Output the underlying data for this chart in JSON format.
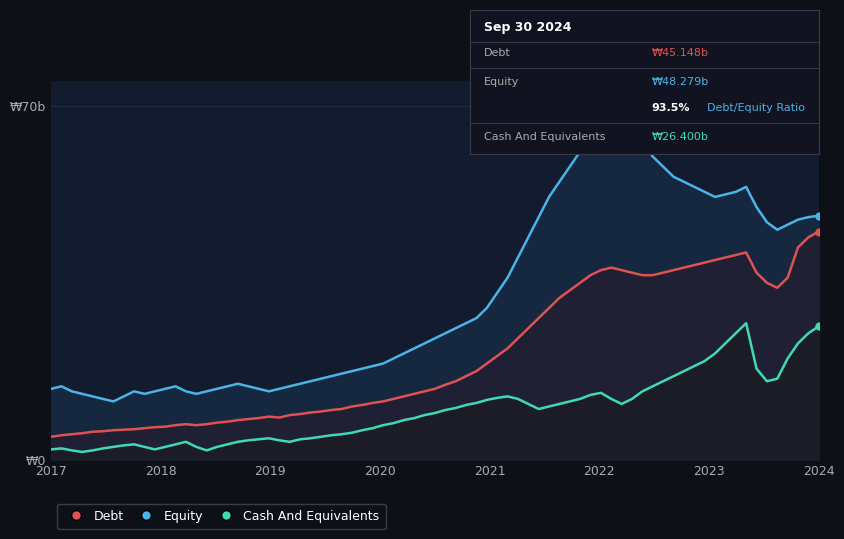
{
  "background_color": "#0d1117",
  "plot_bg_color": "#131b2e",
  "ylabel_70b": "₩70b",
  "ylabel_0": "₩0",
  "x_labels": [
    "2017",
    "2018",
    "2019",
    "2020",
    "2021",
    "2022",
    "2023",
    "2024"
  ],
  "legend": [
    {
      "label": "Debt",
      "color": "#e05252"
    },
    {
      "label": "Equity",
      "color": "#4ab3e8"
    },
    {
      "label": "Cash And Equivalents",
      "color": "#40d9b5"
    }
  ],
  "tooltip": {
    "date": "Sep 30 2024",
    "debt_label": "Debt",
    "debt_value": "₩45.148b",
    "debt_color": "#e05252",
    "equity_label": "Equity",
    "equity_value": "₩48.279b",
    "equity_color": "#4ab3e8",
    "ratio_bold": "93.5%",
    "ratio_text": " Debt/Equity Ratio",
    "ratio_color": "#4ab3e8",
    "cash_label": "Cash And Equivalents",
    "cash_value": "₩26.400b",
    "cash_color": "#40d9b5"
  },
  "debt_color": "#e05252",
  "equity_color": "#4ab3e8",
  "cash_color": "#40d9b5",
  "ylim_max": 75,
  "equity": [
    14.0,
    14.5,
    13.5,
    13.0,
    12.5,
    12.0,
    11.5,
    12.5,
    13.5,
    13.0,
    13.5,
    14.0,
    14.5,
    13.5,
    13.0,
    13.5,
    14.0,
    14.5,
    15.0,
    14.5,
    14.0,
    13.5,
    14.0,
    14.5,
    15.0,
    15.5,
    16.0,
    16.5,
    17.0,
    17.5,
    18.0,
    18.5,
    19.0,
    20.0,
    21.0,
    22.0,
    23.0,
    24.0,
    25.0,
    26.0,
    27.0,
    28.0,
    30.0,
    33.0,
    36.0,
    40.0,
    44.0,
    48.0,
    52.0,
    55.0,
    58.0,
    61.0,
    63.0,
    65.0,
    67.0,
    68.0,
    66.0,
    63.0,
    60.0,
    58.0,
    56.0,
    55.0,
    54.0,
    53.0,
    52.0,
    52.5,
    53.0,
    54.0,
    50.0,
    47.0,
    45.5,
    46.5,
    47.5,
    48.0,
    48.279
  ],
  "debt": [
    4.5,
    4.8,
    5.0,
    5.2,
    5.5,
    5.6,
    5.8,
    5.9,
    6.0,
    6.2,
    6.4,
    6.5,
    6.8,
    7.0,
    6.8,
    7.0,
    7.3,
    7.5,
    7.8,
    8.0,
    8.2,
    8.5,
    8.3,
    8.8,
    9.0,
    9.3,
    9.5,
    9.8,
    10.0,
    10.5,
    10.8,
    11.2,
    11.5,
    12.0,
    12.5,
    13.0,
    13.5,
    14.0,
    14.8,
    15.5,
    16.5,
    17.5,
    19.0,
    20.5,
    22.0,
    24.0,
    26.0,
    28.0,
    30.0,
    32.0,
    33.5,
    35.0,
    36.5,
    37.5,
    38.0,
    37.5,
    37.0,
    36.5,
    36.5,
    37.0,
    37.5,
    38.0,
    38.5,
    39.0,
    39.5,
    40.0,
    40.5,
    41.0,
    37.0,
    35.0,
    34.0,
    36.0,
    42.0,
    44.0,
    45.148
  ],
  "cash": [
    2.0,
    2.2,
    1.8,
    1.5,
    1.8,
    2.2,
    2.5,
    2.8,
    3.0,
    2.5,
    2.0,
    2.5,
    3.0,
    3.5,
    2.5,
    1.8,
    2.5,
    3.0,
    3.5,
    3.8,
    4.0,
    4.2,
    3.8,
    3.5,
    4.0,
    4.2,
    4.5,
    4.8,
    5.0,
    5.3,
    5.8,
    6.2,
    6.8,
    7.2,
    7.8,
    8.2,
    8.8,
    9.2,
    9.8,
    10.2,
    10.8,
    11.2,
    11.8,
    12.2,
    12.5,
    12.0,
    11.0,
    10.0,
    10.5,
    11.0,
    11.5,
    12.0,
    12.8,
    13.2,
    12.0,
    11.0,
    12.0,
    13.5,
    14.5,
    15.5,
    16.5,
    17.5,
    18.5,
    19.5,
    21.0,
    23.0,
    25.0,
    27.0,
    18.0,
    15.5,
    16.0,
    20.0,
    23.0,
    25.0,
    26.4
  ]
}
